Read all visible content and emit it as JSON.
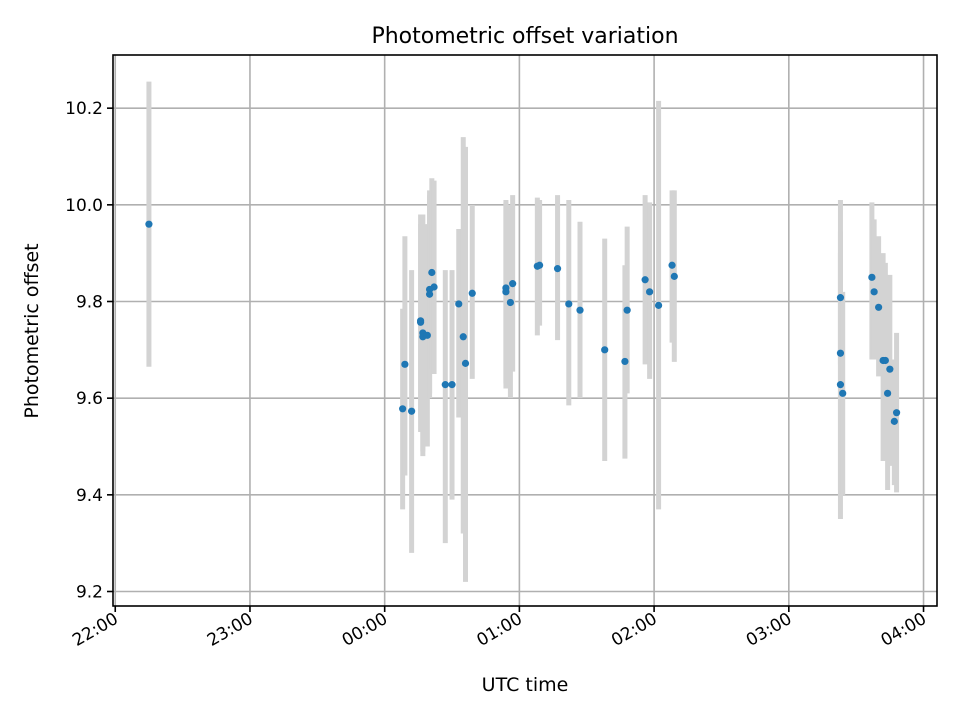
{
  "chart_data": {
    "type": "scatter",
    "title": "Photometric offset variation",
    "xlabel": "UTC time",
    "ylabel": "Photometric offset",
    "x_ticks": [
      "22:00",
      "23:00",
      "00:00",
      "01:00",
      "02:00",
      "03:00",
      "04:00"
    ],
    "y_ticks": [
      "9.2",
      "9.4",
      "9.6",
      "9.8",
      "10.0",
      "10.2"
    ],
    "xlim": [
      "21:59",
      "04:06"
    ],
    "ylim": [
      9.17,
      10.31
    ],
    "grid": true,
    "colors": {
      "marker": "#1f77b4",
      "errorbar": "#d3d3d3",
      "grid": "#b0b0b0"
    },
    "points": [
      {
        "t": "22:15",
        "y": 9.96,
        "lo": 9.665,
        "hi": 10.255
      },
      {
        "t": "00:08",
        "y": 9.578,
        "lo": 9.37,
        "hi": 9.785
      },
      {
        "t": "00:09",
        "y": 9.67,
        "lo": 9.44,
        "hi": 9.935
      },
      {
        "t": "00:12",
        "y": 9.573,
        "lo": 9.28,
        "hi": 9.865
      },
      {
        "t": "00:16",
        "y": 9.757,
        "lo": 9.53,
        "hi": 9.96
      },
      {
        "t": "00:16",
        "y": 9.76,
        "lo": 9.56,
        "hi": 9.98
      },
      {
        "t": "00:17",
        "y": 9.735,
        "lo": 9.48,
        "hi": 9.98
      },
      {
        "t": "00:17",
        "y": 9.727,
        "lo": 9.49,
        "hi": 9.95
      },
      {
        "t": "00:19",
        "y": 9.73,
        "lo": 9.5,
        "hi": 9.96
      },
      {
        "t": "00:20",
        "y": 9.825,
        "lo": 9.61,
        "hi": 10.03
      },
      {
        "t": "00:20",
        "y": 9.815,
        "lo": 9.6,
        "hi": 10.02
      },
      {
        "t": "00:21",
        "y": 9.86,
        "lo": 9.66,
        "hi": 10.055
      },
      {
        "t": "00:22",
        "y": 9.83,
        "lo": 9.65,
        "hi": 10.05
      },
      {
        "t": "00:27",
        "y": 9.628,
        "lo": 9.3,
        "hi": 9.865
      },
      {
        "t": "00:30",
        "y": 9.628,
        "lo": 9.39,
        "hi": 9.865
      },
      {
        "t": "00:33",
        "y": 9.795,
        "lo": 9.56,
        "hi": 9.95
      },
      {
        "t": "00:35",
        "y": 9.727,
        "lo": 9.32,
        "hi": 10.14
      },
      {
        "t": "00:36",
        "y": 9.672,
        "lo": 9.22,
        "hi": 10.12
      },
      {
        "t": "00:39",
        "y": 9.817,
        "lo": 9.64,
        "hi": 10.0
      },
      {
        "t": "00:54",
        "y": 9.828,
        "lo": 9.62,
        "hi": 10.01
      },
      {
        "t": "00:54",
        "y": 9.82,
        "lo": 9.63,
        "hi": 10.005
      },
      {
        "t": "00:56",
        "y": 9.798,
        "lo": 9.6,
        "hi": 10.0
      },
      {
        "t": "00:57",
        "y": 9.837,
        "lo": 9.655,
        "hi": 10.02
      },
      {
        "t": "01:08",
        "y": 9.873,
        "lo": 9.73,
        "hi": 10.015
      },
      {
        "t": "01:09",
        "y": 9.875,
        "lo": 9.75,
        "hi": 10.01
      },
      {
        "t": "01:17",
        "y": 9.868,
        "lo": 9.72,
        "hi": 10.02
      },
      {
        "t": "01:22",
        "y": 9.795,
        "lo": 9.585,
        "hi": 10.01
      },
      {
        "t": "01:27",
        "y": 9.782,
        "lo": 9.6,
        "hi": 9.965
      },
      {
        "t": "01:38",
        "y": 9.7,
        "lo": 9.47,
        "hi": 9.93
      },
      {
        "t": "01:47",
        "y": 9.676,
        "lo": 9.475,
        "hi": 9.875
      },
      {
        "t": "01:48",
        "y": 9.782,
        "lo": 9.61,
        "hi": 9.955
      },
      {
        "t": "01:56",
        "y": 9.845,
        "lo": 9.67,
        "hi": 10.02
      },
      {
        "t": "01:58",
        "y": 9.82,
        "lo": 9.64,
        "hi": 10.005
      },
      {
        "t": "02:02",
        "y": 9.792,
        "lo": 9.37,
        "hi": 10.215
      },
      {
        "t": "02:08",
        "y": 9.875,
        "lo": 9.715,
        "hi": 10.03
      },
      {
        "t": "02:09",
        "y": 9.852,
        "lo": 9.675,
        "hi": 10.03
      },
      {
        "t": "03:23",
        "y": 9.808,
        "lo": 9.67,
        "hi": 10.01
      },
      {
        "t": "03:23",
        "y": 9.693,
        "lo": 9.41,
        "hi": 9.945
      },
      {
        "t": "03:23",
        "y": 9.628,
        "lo": 9.35,
        "hi": 9.9
      },
      {
        "t": "03:24",
        "y": 9.61,
        "lo": 9.4,
        "hi": 9.82
      },
      {
        "t": "03:37",
        "y": 9.85,
        "lo": 9.68,
        "hi": 10.005
      },
      {
        "t": "03:38",
        "y": 9.82,
        "lo": 9.68,
        "hi": 9.97
      },
      {
        "t": "03:40",
        "y": 9.788,
        "lo": 9.645,
        "hi": 9.935
      },
      {
        "t": "03:42",
        "y": 9.678,
        "lo": 9.47,
        "hi": 9.9
      },
      {
        "t": "03:43",
        "y": 9.678,
        "lo": 9.47,
        "hi": 9.88
      },
      {
        "t": "03:44",
        "y": 9.61,
        "lo": 9.41,
        "hi": 9.82
      },
      {
        "t": "03:45",
        "y": 9.66,
        "lo": 9.46,
        "hi": 9.855
      },
      {
        "t": "03:47",
        "y": 9.552,
        "lo": 9.42,
        "hi": 9.68
      },
      {
        "t": "03:48",
        "y": 9.57,
        "lo": 9.405,
        "hi": 9.735
      }
    ]
  }
}
